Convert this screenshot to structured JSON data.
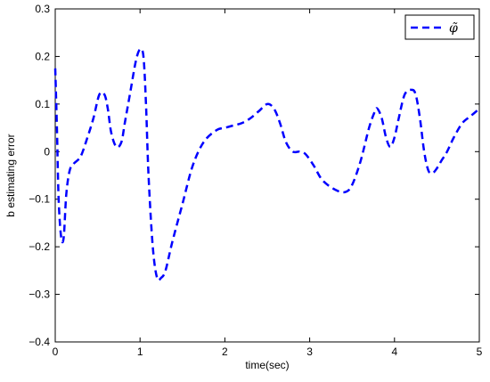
{
  "chart_data": {
    "type": "line",
    "title": "",
    "xlabel": "time(sec)",
    "ylabel": "b estimating error",
    "xlim": [
      0,
      5
    ],
    "ylim": [
      -0.4,
      0.3
    ],
    "xticks": [
      0,
      1,
      2,
      3,
      4,
      5
    ],
    "xtick_labels": [
      "0",
      "1",
      "2",
      "3",
      "4",
      "5"
    ],
    "yticks": [
      -0.4,
      -0.3,
      -0.2,
      -0.1,
      0,
      0.1,
      0.2,
      0.3
    ],
    "ytick_labels": [
      "−0.4",
      "−0.3",
      "−0.2",
      "−0.1",
      "0",
      "0.1",
      "0.2",
      "0.3"
    ],
    "grid": false,
    "legend_position": "top-right",
    "series": [
      {
        "name": "φ̃",
        "color": "#0000ff",
        "line_style": "dashed",
        "x": [
          0,
          0.02,
          0.04,
          0.07,
          0.1,
          0.13,
          0.17,
          0.22,
          0.3,
          0.38,
          0.45,
          0.52,
          0.58,
          0.62,
          0.66,
          0.72,
          0.78,
          0.82,
          0.88,
          0.95,
          1.0,
          1.04,
          1.07,
          1.1,
          1.15,
          1.2,
          1.25,
          1.3,
          1.38,
          1.5,
          1.62,
          1.75,
          1.9,
          2.0,
          2.1,
          2.2,
          2.3,
          2.4,
          2.5,
          2.58,
          2.65,
          2.72,
          2.8,
          2.88,
          2.95,
          3.05,
          3.15,
          3.3,
          3.42,
          3.5,
          3.6,
          3.7,
          3.77,
          3.8,
          3.85,
          3.9,
          3.95,
          4.0,
          4.05,
          4.12,
          4.2,
          4.25,
          4.3,
          4.35,
          4.4,
          4.45,
          4.5,
          4.55,
          4.62,
          4.7,
          4.8,
          4.9,
          5.0
        ],
        "y": [
          0.175,
          0.05,
          -0.1,
          -0.18,
          -0.18,
          -0.09,
          -0.04,
          -0.025,
          -0.01,
          0.03,
          0.07,
          0.12,
          0.12,
          0.09,
          0.04,
          0.01,
          0.02,
          0.06,
          0.12,
          0.19,
          0.215,
          0.2,
          0.1,
          -0.05,
          -0.2,
          -0.265,
          -0.265,
          -0.25,
          -0.19,
          -0.11,
          -0.03,
          0.02,
          0.045,
          0.05,
          0.055,
          0.06,
          0.07,
          0.085,
          0.1,
          0.09,
          0.06,
          0.02,
          0.0,
          0.0,
          -0.005,
          -0.03,
          -0.06,
          -0.08,
          -0.085,
          -0.07,
          -0.02,
          0.05,
          0.085,
          0.09,
          0.07,
          0.03,
          0.01,
          0.03,
          0.07,
          0.12,
          0.13,
          0.12,
          0.07,
          0.0,
          -0.04,
          -0.045,
          -0.035,
          -0.02,
          0.0,
          0.03,
          0.06,
          0.075,
          0.09
        ]
      }
    ]
  }
}
